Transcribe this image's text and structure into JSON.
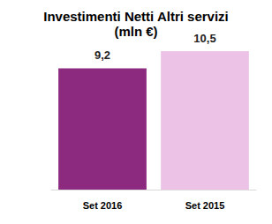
{
  "chart_data": {
    "type": "bar",
    "title": "Investimenti Netti Altri servizi",
    "subtitle": "(mln €)",
    "categories": [
      "Set 2016",
      "Set 2015"
    ],
    "values": [
      9.2,
      10.5
    ],
    "value_labels": [
      "9,2",
      "10,5"
    ],
    "colors": [
      "#8b2a7e",
      "#ecc3e7"
    ],
    "ylim": [
      0,
      10.5
    ],
    "data_labels": true,
    "tick_labels": "x",
    "grid": false
  }
}
